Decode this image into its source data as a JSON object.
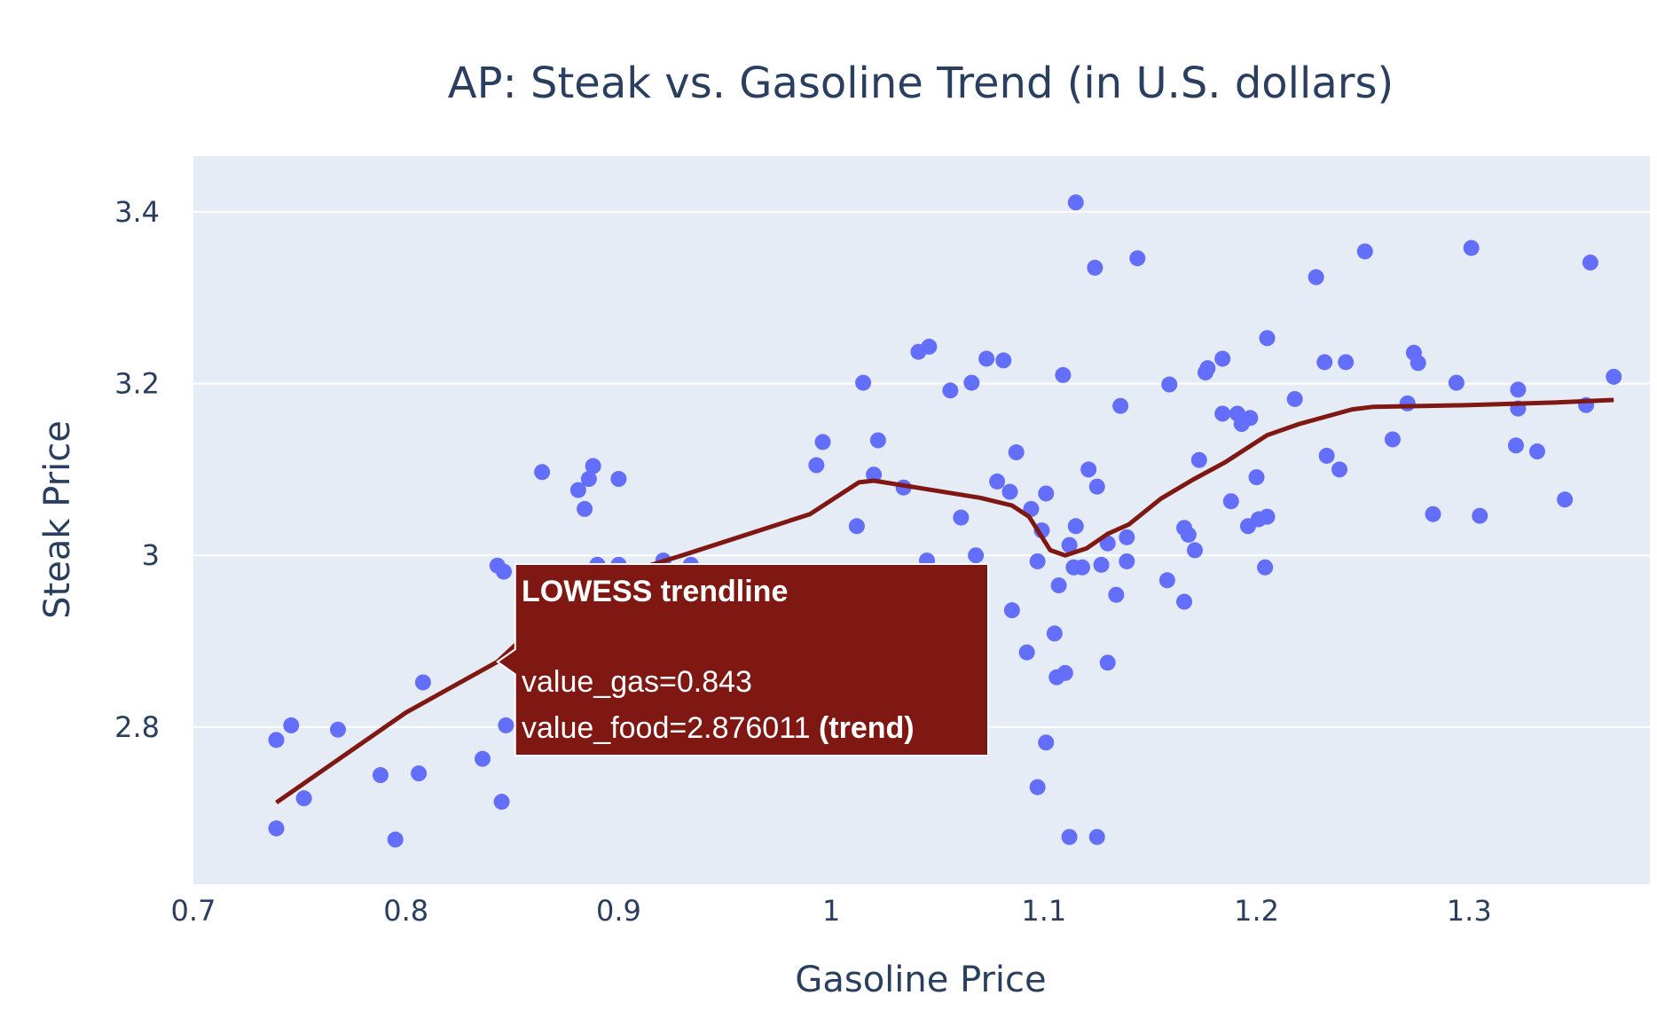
{
  "chart_data": {
    "type": "scatter",
    "title": "AP: Steak vs. Gasoline Trend (in U.S. dollars)",
    "xlabel": "Gasoline Price",
    "ylabel": "Steak Price",
    "xlim": [
      0.7,
      1.385
    ],
    "ylim": [
      2.617,
      3.465
    ],
    "xticks": [
      0.7,
      0.8,
      0.9,
      1,
      1.1,
      1.2,
      1.3
    ],
    "xtick_labels": [
      "0.7",
      "0.8",
      "0.9",
      "1",
      "1.1",
      "1.2",
      "1.3"
    ],
    "yticks": [
      2.8,
      3,
      3.2,
      3.4
    ],
    "ytick_labels": [
      "2.8",
      "3",
      "3.2",
      "3.4"
    ],
    "grid": true,
    "colors": {
      "background": "#e5ecf6",
      "points": "#636efa",
      "trend": "#7f1812",
      "text": "#2a3f5f",
      "grid": "#ffffff"
    },
    "series": [
      {
        "type": "scatter",
        "points": [
          [
            0.739,
            2.785
          ],
          [
            0.746,
            2.802
          ],
          [
            0.739,
            2.682
          ],
          [
            0.752,
            2.717
          ],
          [
            0.768,
            2.797
          ],
          [
            0.788,
            2.744
          ],
          [
            0.795,
            2.669
          ],
          [
            0.806,
            2.746
          ],
          [
            0.808,
            2.852
          ],
          [
            0.836,
            2.763
          ],
          [
            0.843,
            2.988
          ],
          [
            0.846,
            2.981
          ],
          [
            0.845,
            2.713
          ],
          [
            0.847,
            2.802
          ],
          [
            0.864,
            3.097
          ],
          [
            0.881,
            3.076
          ],
          [
            0.884,
            3.054
          ],
          [
            0.886,
            3.089
          ],
          [
            0.888,
            3.104
          ],
          [
            0.89,
            2.989
          ],
          [
            0.9,
            2.989
          ],
          [
            0.9,
            3.089
          ],
          [
            0.921,
            2.994
          ],
          [
            0.934,
            2.989
          ],
          [
            0.993,
            3.105
          ],
          [
            0.996,
            3.132
          ],
          [
            1.012,
            3.034
          ],
          [
            1.015,
            3.201
          ],
          [
            1.02,
            3.094
          ],
          [
            1.022,
            3.134
          ],
          [
            1.034,
            3.079
          ],
          [
            1.041,
            3.237
          ],
          [
            1.046,
            3.243
          ],
          [
            1.045,
            2.994
          ],
          [
            1.056,
            3.192
          ],
          [
            1.061,
            3.044
          ],
          [
            1.066,
            3.201
          ],
          [
            1.068,
            3.0
          ],
          [
            1.073,
            3.229
          ],
          [
            1.078,
            3.086
          ],
          [
            1.081,
            3.227
          ],
          [
            1.084,
            3.074
          ],
          [
            1.085,
            2.936
          ],
          [
            1.087,
            3.12
          ],
          [
            1.092,
            2.887
          ],
          [
            1.094,
            3.054
          ],
          [
            1.097,
            2.73
          ],
          [
            1.097,
            2.993
          ],
          [
            1.099,
            3.029
          ],
          [
            1.101,
            3.072
          ],
          [
            1.101,
            2.782
          ],
          [
            1.105,
            2.909
          ],
          [
            1.106,
            2.858
          ],
          [
            1.107,
            2.965
          ],
          [
            1.109,
            3.21
          ],
          [
            1.11,
            2.863
          ],
          [
            1.112,
            2.672
          ],
          [
            1.112,
            3.012
          ],
          [
            1.114,
            2.986
          ],
          [
            1.115,
            3.034
          ],
          [
            1.115,
            3.411
          ],
          [
            1.118,
            2.986
          ],
          [
            1.121,
            3.1
          ],
          [
            1.124,
            3.335
          ],
          [
            1.125,
            3.08
          ],
          [
            1.125,
            2.672
          ],
          [
            1.127,
            2.989
          ],
          [
            1.13,
            2.875
          ],
          [
            1.13,
            3.014
          ],
          [
            1.134,
            2.954
          ],
          [
            1.136,
            3.174
          ],
          [
            1.139,
            2.993
          ],
          [
            1.139,
            3.021
          ],
          [
            1.144,
            3.346
          ],
          [
            1.158,
            2.971
          ],
          [
            1.159,
            3.199
          ],
          [
            1.166,
            3.032
          ],
          [
            1.166,
            2.946
          ],
          [
            1.168,
            3.024
          ],
          [
            1.171,
            3.006
          ],
          [
            1.173,
            3.111
          ],
          [
            1.176,
            3.213
          ],
          [
            1.177,
            3.218
          ],
          [
            1.184,
            3.229
          ],
          [
            1.184,
            3.165
          ],
          [
            1.188,
            3.063
          ],
          [
            1.191,
            3.165
          ],
          [
            1.193,
            3.153
          ],
          [
            1.196,
            3.034
          ],
          [
            1.197,
            3.16
          ],
          [
            1.2,
            3.091
          ],
          [
            1.201,
            3.042
          ],
          [
            1.204,
            2.986
          ],
          [
            1.205,
            3.045
          ],
          [
            1.205,
            3.253
          ],
          [
            1.218,
            3.182
          ],
          [
            1.228,
            3.324
          ],
          [
            1.232,
            3.225
          ],
          [
            1.233,
            3.116
          ],
          [
            1.239,
            3.1
          ],
          [
            1.242,
            3.225
          ],
          [
            1.251,
            3.354
          ],
          [
            1.264,
            3.135
          ],
          [
            1.271,
            3.177
          ],
          [
            1.274,
            3.236
          ],
          [
            1.276,
            3.224
          ],
          [
            1.283,
            3.048
          ],
          [
            1.294,
            3.201
          ],
          [
            1.301,
            3.358
          ],
          [
            1.305,
            3.046
          ],
          [
            1.322,
            3.128
          ],
          [
            1.323,
            3.193
          ],
          [
            1.323,
            3.171
          ],
          [
            1.332,
            3.121
          ],
          [
            1.345,
            3.065
          ],
          [
            1.355,
            3.175
          ],
          [
            1.357,
            3.341
          ],
          [
            1.368,
            3.208
          ]
        ]
      },
      {
        "name": "LOWESS trendline",
        "type": "line",
        "x": [
          0.739,
          0.8,
          0.843,
          0.88,
          0.93,
          0.99,
          1.013,
          1.02,
          1.04,
          1.07,
          1.085,
          1.093,
          1.103,
          1.11,
          1.12,
          1.13,
          1.14,
          1.155,
          1.17,
          1.185,
          1.205,
          1.22,
          1.245,
          1.255,
          1.3,
          1.34,
          1.368
        ],
        "y": [
          2.712,
          2.817,
          2.876,
          2.962,
          3.0,
          3.048,
          3.085,
          3.087,
          3.079,
          3.067,
          3.058,
          3.045,
          3.006,
          3.0,
          3.008,
          3.025,
          3.036,
          3.066,
          3.088,
          3.108,
          3.14,
          3.153,
          3.17,
          3.173,
          3.175,
          3.178,
          3.181
        ]
      }
    ],
    "tooltip": {
      "header": "LOWESS trendline",
      "line1": "value_gas=0.843",
      "line2_main": "value_food=2.876011 ",
      "line2_bold": "(trend)",
      "x": 0.843,
      "y": 2.876
    }
  }
}
